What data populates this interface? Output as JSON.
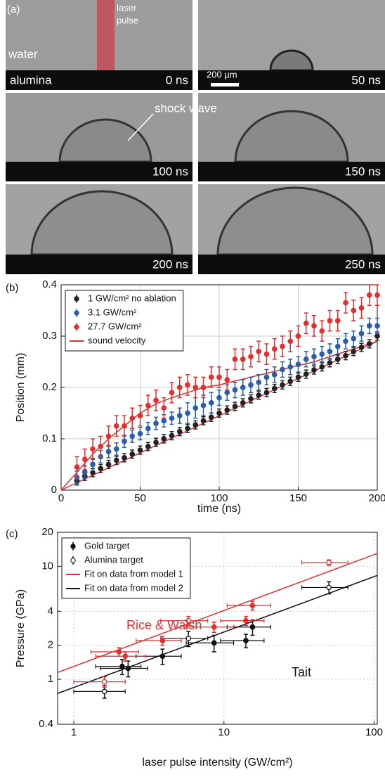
{
  "panel_a": {
    "label": "(a)",
    "laser": "laser",
    "pulse": "pulse",
    "water": "water",
    "alumina": "alumina",
    "scale_bar": "200 µm",
    "shock_wave": "shock wave",
    "times": [
      "0 ns",
      "50 ns",
      "100 ns",
      "150 ns",
      "200 ns",
      "250 ns"
    ]
  },
  "chart_data": [
    {
      "type": "scatter",
      "label": "(b)",
      "xlabel": "time (ns)",
      "ylabel": "Position (mm)",
      "xlim": [
        0,
        200
      ],
      "ylim": [
        0,
        0.4
      ],
      "xticks": [
        0,
        50,
        100,
        150,
        200
      ],
      "yticks": [
        0,
        0.1,
        0.2,
        0.3,
        0.4
      ],
      "grid": true,
      "legend": "upper left",
      "x": [
        10,
        15,
        20,
        25,
        30,
        35,
        40,
        45,
        50,
        55,
        60,
        65,
        70,
        75,
        80,
        85,
        90,
        95,
        100,
        105,
        110,
        115,
        120,
        125,
        130,
        135,
        140,
        145,
        150,
        155,
        160,
        165,
        170,
        175,
        180,
        185,
        190,
        195,
        200
      ],
      "series": [
        {
          "name": "1 GW/cm² no ablation",
          "color": "#222222",
          "values": [
            0.018,
            0.027,
            0.034,
            0.042,
            0.05,
            0.058,
            0.063,
            0.07,
            0.078,
            0.085,
            0.093,
            0.1,
            0.106,
            0.114,
            0.12,
            0.127,
            0.135,
            0.142,
            0.15,
            0.156,
            0.163,
            0.17,
            0.178,
            0.185,
            0.19,
            0.198,
            0.205,
            0.212,
            0.22,
            0.226,
            0.234,
            0.24,
            0.248,
            0.255,
            0.262,
            0.27,
            0.278,
            0.285,
            0.3
          ],
          "errors": [
            0.008,
            0.008,
            0.008,
            0.008,
            0.008,
            0.008,
            0.008,
            0.008,
            0.008,
            0.008,
            0.008,
            0.008,
            0.008,
            0.008,
            0.008,
            0.008,
            0.008,
            0.008,
            0.008,
            0.008,
            0.008,
            0.008,
            0.008,
            0.008,
            0.008,
            0.008,
            0.008,
            0.008,
            0.008,
            0.008,
            0.008,
            0.008,
            0.008,
            0.008,
            0.008,
            0.008,
            0.008,
            0.008,
            0.008
          ]
        },
        {
          "name": "3.1 GW/cm²",
          "color": "#2a5ea8",
          "values": [
            0.025,
            0.035,
            0.05,
            0.065,
            0.075,
            0.08,
            0.095,
            0.105,
            0.11,
            0.12,
            0.13,
            0.135,
            0.14,
            0.145,
            0.15,
            0.16,
            0.165,
            0.17,
            0.18,
            0.19,
            0.195,
            0.2,
            0.205,
            0.21,
            0.22,
            0.225,
            0.235,
            0.24,
            0.245,
            0.255,
            0.26,
            0.265,
            0.27,
            0.28,
            0.29,
            0.295,
            0.305,
            0.32,
            0.32
          ],
          "errors": [
            0.012,
            0.012,
            0.012,
            0.012,
            0.012,
            0.012,
            0.012,
            0.012,
            0.012,
            0.012,
            0.012,
            0.012,
            0.012,
            0.015,
            0.02,
            0.02,
            0.02,
            0.02,
            0.015,
            0.015,
            0.015,
            0.015,
            0.015,
            0.015,
            0.015,
            0.015,
            0.015,
            0.015,
            0.015,
            0.015,
            0.015,
            0.015,
            0.015,
            0.015,
            0.015,
            0.015,
            0.015,
            0.015,
            0.015
          ]
        },
        {
          "name": "27.7 GW/cm²",
          "color": "#e03030",
          "values": [
            0.045,
            0.06,
            0.08,
            0.085,
            0.105,
            0.125,
            0.125,
            0.14,
            0.145,
            0.165,
            0.175,
            0.16,
            0.19,
            0.2,
            0.205,
            0.2,
            0.2,
            0.22,
            0.22,
            0.215,
            0.255,
            0.255,
            0.26,
            0.27,
            0.265,
            0.275,
            0.28,
            0.29,
            0.3,
            0.325,
            0.32,
            0.31,
            0.33,
            0.33,
            0.365,
            0.35,
            0.355,
            0.38,
            0.38
          ],
          "errors": [
            0.02,
            0.02,
            0.02,
            0.02,
            0.02,
            0.02,
            0.02,
            0.02,
            0.02,
            0.02,
            0.02,
            0.02,
            0.02,
            0.02,
            0.02,
            0.02,
            0.02,
            0.02,
            0.02,
            0.02,
            0.02,
            0.02,
            0.02,
            0.02,
            0.02,
            0.02,
            0.02,
            0.02,
            0.02,
            0.02,
            0.02,
            0.02,
            0.02,
            0.02,
            0.02,
            0.02,
            0.02,
            0.02,
            0.02
          ]
        }
      ],
      "lines": [
        {
          "name": "sound velocity",
          "color": "#e03030",
          "x": [
            0,
            200
          ],
          "values": [
            0,
            0.29
          ]
        },
        {
          "color": "#e03030",
          "x": [
            0,
            10,
            20,
            30,
            40,
            50,
            60,
            70,
            80,
            90,
            100,
            120,
            140,
            160,
            180,
            200
          ],
          "values": [
            0,
            0.035,
            0.07,
            0.1,
            0.125,
            0.15,
            0.168,
            0.18,
            0.19,
            0.2,
            0.205,
            0.22,
            0.235,
            0.25,
            0.27,
            0.29
          ]
        }
      ]
    },
    {
      "type": "scatter",
      "label": "(c)",
      "xlabel": "laser pulse intensity (GW/cm²)",
      "ylabel": "Pressure (GPa)",
      "xlog": true,
      "ylog": true,
      "xlim": [
        0.78,
        105
      ],
      "ylim": [
        0.4,
        20
      ],
      "xticks": [
        1,
        10,
        100
      ],
      "yticks": [
        0.4,
        1,
        2,
        4,
        10,
        20
      ],
      "grid": true,
      "legend": "upper left",
      "annotations": [
        {
          "text": "Rice & Walsh",
          "color": "#e03030"
        },
        {
          "text": "Tait",
          "color": "#111111"
        }
      ],
      "series": [
        {
          "name": "Gold target",
          "color": "#111111",
          "x": [
            2.1,
            2.3,
            3.9,
            8.6,
            14,
            15.5
          ],
          "values": [
            1.3,
            1.25,
            1.6,
            2.1,
            2.2,
            2.9
          ],
          "xerrors": [
            0.7,
            0.8,
            1.3,
            3,
            4.5,
            5
          ],
          "errors": [
            0.2,
            0.2,
            0.25,
            0.35,
            0.3,
            0.45
          ]
        },
        {
          "name": "Alumina target",
          "color": "#111111",
          "open": true,
          "x": [
            1.6,
            5.8,
            50
          ],
          "values": [
            0.78,
            2.3,
            6.5
          ],
          "xerrors": [
            0.6,
            2,
            17
          ],
          "errors": [
            0.1,
            0.35,
            0.8
          ]
        },
        {
          "color": "#e03030",
          "x": [
            2.0,
            2.2,
            3.9,
            8.6,
            14,
            15.5
          ],
          "values": [
            1.75,
            1.6,
            2.2,
            2.9,
            3.3,
            4.5
          ],
          "xerrors": [
            0.7,
            0.8,
            1.3,
            3,
            4.5,
            5
          ],
          "errors": [
            0.15,
            0.15,
            0.2,
            0.3,
            0.3,
            0.4
          ]
        },
        {
          "color": "#e03030",
          "open": true,
          "x": [
            1.6,
            5.8,
            50
          ],
          "values": [
            0.95,
            3.3,
            10.8
          ],
          "xerrors": [
            0.6,
            2,
            17
          ],
          "errors": [
            0.1,
            0.3,
            0.6
          ]
        }
      ],
      "lines": [
        {
          "name": "Fit on data from model 1",
          "color": "#e03030",
          "x": [
            0.78,
            105
          ],
          "values": [
            1.15,
            13
          ]
        },
        {
          "name": "Fit on data from model 2",
          "color": "#111111",
          "x": [
            0.78,
            105
          ],
          "values": [
            0.75,
            8.3
          ]
        }
      ]
    }
  ]
}
